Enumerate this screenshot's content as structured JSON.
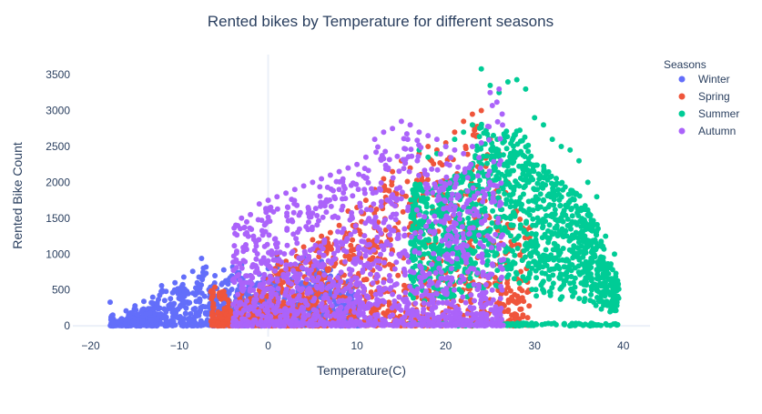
{
  "chart_data": {
    "type": "scatter",
    "title": "Rented bikes by Temperature for different seasons",
    "xlabel": "Temperature(C)",
    "ylabel": "Rented Bike Count",
    "xlim": [
      -22,
      43
    ],
    "ylim": [
      -150,
      3780
    ],
    "x_ticks": [
      -20,
      -10,
      0,
      10,
      20,
      30,
      40
    ],
    "y_ticks": [
      0,
      500,
      1000,
      1500,
      2000,
      2500,
      3000,
      3500
    ],
    "grid": false,
    "zero_line": true,
    "legend": {
      "title": "Seasons",
      "placement": "top-right"
    },
    "series": [
      {
        "name": "Winter",
        "color": "#636efa",
        "x_range": [
          -17.8,
          10.3
        ],
        "points": [
          [
            -17.8,
            330
          ],
          [
            -17.5,
            150
          ],
          [
            -17,
            60
          ],
          [
            -16.5,
            100
          ],
          [
            -16,
            210
          ],
          [
            -15.5,
            180
          ],
          [
            -15,
            280
          ],
          [
            -14.5,
            120
          ],
          [
            -14,
            340
          ],
          [
            -13.5,
            240
          ],
          [
            -13,
            400
          ],
          [
            -12.5,
            320
          ],
          [
            -12,
            560
          ],
          [
            -11.5,
            480
          ],
          [
            -11,
            380
          ],
          [
            -10.5,
            600
          ],
          [
            -10,
            520
          ],
          [
            -9.5,
            680
          ],
          [
            -9,
            450
          ],
          [
            -8.5,
            760
          ],
          [
            -8,
            600
          ],
          [
            -7.5,
            940
          ],
          [
            -7,
            820
          ],
          [
            -6.5,
            540
          ],
          [
            -6,
            700
          ],
          [
            -5.5,
            440
          ],
          [
            -5,
            780
          ],
          [
            -4.5,
            640
          ],
          [
            -4,
            820
          ],
          [
            -3.5,
            740
          ],
          [
            -3,
            850
          ],
          [
            -2.5,
            600
          ],
          [
            -2,
            700
          ],
          [
            -1.5,
            560
          ],
          [
            -1,
            720
          ],
          [
            -0.5,
            650
          ],
          [
            0,
            800
          ],
          [
            0.5,
            600
          ],
          [
            1,
            980
          ],
          [
            1.5,
            700
          ],
          [
            2,
            900
          ],
          [
            3,
            820
          ],
          [
            4,
            950
          ],
          [
            5,
            850
          ],
          [
            6,
            900
          ],
          [
            7,
            780
          ],
          [
            8,
            700
          ],
          [
            9,
            620
          ],
          [
            10,
            550
          ]
        ]
      },
      {
        "name": "Spring",
        "color": "#ef553b",
        "x_range": [
          -6.5,
          29.5
        ],
        "points": [
          [
            -6,
            540
          ],
          [
            -5,
            480
          ],
          [
            -4,
            300
          ],
          [
            -3,
            450
          ],
          [
            -2,
            380
          ],
          [
            -1,
            500
          ],
          [
            0,
            650
          ],
          [
            1,
            1000
          ],
          [
            2,
            900
          ],
          [
            3,
            1050
          ],
          [
            4,
            1100
          ],
          [
            5,
            1200
          ],
          [
            6,
            1250
          ],
          [
            7,
            1300
          ],
          [
            8,
            1400
          ],
          [
            9,
            1600
          ],
          [
            10,
            1650
          ],
          [
            11,
            1750
          ],
          [
            12,
            1900
          ],
          [
            13,
            2050
          ],
          [
            14,
            2150
          ],
          [
            15,
            2300
          ],
          [
            16,
            2200
          ],
          [
            17,
            2400
          ],
          [
            18,
            2500
          ],
          [
            19,
            2450
          ],
          [
            20,
            2550
          ],
          [
            21,
            2700
          ],
          [
            22,
            2850
          ],
          [
            23,
            2950
          ],
          [
            24,
            3000
          ],
          [
            25,
            2600
          ],
          [
            26,
            2400
          ],
          [
            27,
            2000
          ],
          [
            28,
            1600
          ]
        ]
      },
      {
        "name": "Summer",
        "color": "#00cc96",
        "x_range": [
          16,
          39.5
        ],
        "points": [
          [
            17,
            2450
          ],
          [
            18,
            2350
          ],
          [
            19,
            2400
          ],
          [
            20,
            2500
          ],
          [
            21,
            2600
          ],
          [
            22,
            2700
          ],
          [
            23,
            2800
          ],
          [
            24,
            3580
          ],
          [
            25,
            3350
          ],
          [
            26,
            3250
          ],
          [
            27,
            3400
          ],
          [
            28,
            3430
          ],
          [
            29,
            3300
          ],
          [
            30,
            2900
          ],
          [
            31,
            2800
          ],
          [
            32,
            2600
          ],
          [
            33,
            2500
          ],
          [
            34,
            2450
          ],
          [
            35,
            2300
          ],
          [
            36,
            2000
          ],
          [
            37,
            1800
          ],
          [
            38,
            1250
          ],
          [
            39,
            1000
          ]
        ]
      },
      {
        "name": "Autumn",
        "color": "#ab63fa",
        "x_range": [
          -4,
          26.5
        ],
        "points": [
          [
            -3,
            1500
          ],
          [
            -2,
            1550
          ],
          [
            -1,
            1700
          ],
          [
            0,
            1750
          ],
          [
            1,
            1800
          ],
          [
            2,
            1850
          ],
          [
            3,
            1900
          ],
          [
            4,
            1950
          ],
          [
            5,
            2000
          ],
          [
            6,
            2050
          ],
          [
            7,
            2100
          ],
          [
            8,
            2150
          ],
          [
            9,
            2200
          ],
          [
            10,
            2250
          ],
          [
            11,
            2350
          ],
          [
            12,
            2600
          ],
          [
            13,
            2700
          ],
          [
            14,
            2750
          ],
          [
            15,
            2850
          ],
          [
            16,
            2800
          ],
          [
            17,
            2700
          ],
          [
            18,
            2650
          ],
          [
            19,
            2600
          ],
          [
            20,
            2500
          ],
          [
            21,
            2450
          ],
          [
            22,
            2400
          ],
          [
            23,
            2500
          ],
          [
            24,
            2550
          ],
          [
            25,
            3250
          ],
          [
            26,
            3300
          ]
        ]
      }
    ]
  }
}
